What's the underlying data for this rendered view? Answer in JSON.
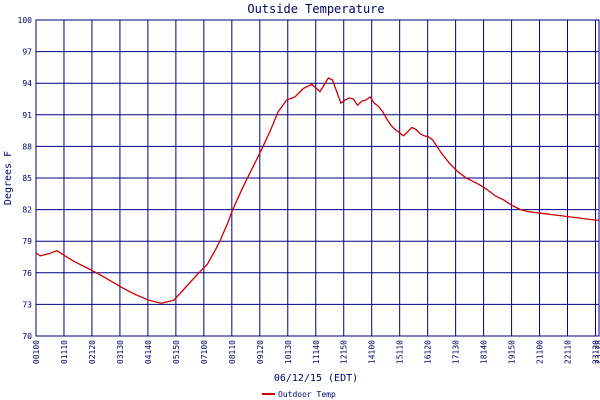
{
  "chart_data": {
    "type": "line",
    "title": "Outside Temperature",
    "ylabel": "Degrees F",
    "xlabel": "06/12/15 (EDT)",
    "ylim": [
      70,
      100
    ],
    "y_ticks": [
      "70",
      "73",
      "76",
      "79",
      "82",
      "85",
      "88",
      "91",
      "94",
      "97",
      "100"
    ],
    "x_ticks": [
      "00100",
      "01110",
      "02120",
      "03130",
      "04140",
      "05150",
      "07100",
      "08110",
      "09120",
      "10130",
      "11140",
      "12150",
      "14100",
      "15110",
      "16120",
      "17130",
      "18140",
      "19150",
      "21100",
      "22110",
      "23120",
      "23:28"
    ],
    "x_minutes_range": [
      60,
      1408
    ],
    "grid": true,
    "legend_position": "bottom",
    "colors": {
      "series": "#cc0000",
      "grid": "#000080",
      "text": "#000066",
      "background": "#ffffff"
    },
    "series": [
      {
        "name": "Outdoor Temp",
        "x": [
          60,
          70,
          90,
          110,
          130,
          150,
          180,
          210,
          240,
          270,
          300,
          330,
          360,
          390,
          420,
          450,
          470,
          490,
          500,
          510,
          520,
          530,
          540,
          560,
          580,
          600,
          620,
          640,
          660,
          680,
          700,
          720,
          740,
          760,
          770,
          780,
          790,
          800,
          810,
          820,
          830,
          840,
          850,
          860,
          870,
          880,
          890,
          900,
          910,
          920,
          930,
          940,
          950,
          960,
          970,
          980,
          990,
          1000,
          1010,
          1020,
          1030,
          1040,
          1050,
          1060,
          1070,
          1080,
          1090,
          1100,
          1120,
          1140,
          1160,
          1180,
          1200,
          1220,
          1240,
          1260,
          1280,
          1300,
          1320,
          1340,
          1360,
          1380,
          1400,
          1408
        ],
        "values": [
          77.9,
          77.6,
          77.8,
          78.1,
          77.6,
          77.1,
          76.5,
          75.9,
          75.2,
          74.5,
          73.9,
          73.4,
          73.1,
          73.4,
          74.7,
          76.0,
          76.8,
          78.2,
          79.0,
          79.9,
          80.8,
          81.9,
          82.8,
          84.5,
          86.1,
          87.7,
          89.4,
          91.3,
          92.4,
          92.7,
          93.5,
          93.9,
          93.2,
          94.5,
          94.3,
          93.2,
          92.1,
          92.4,
          92.6,
          92.5,
          91.9,
          92.3,
          92.4,
          92.7,
          92.1,
          91.8,
          91.3,
          90.6,
          90.0,
          89.6,
          89.3,
          89.0,
          89.4,
          89.8,
          89.6,
          89.2,
          89.0,
          88.9,
          88.6,
          88.0,
          87.4,
          86.9,
          86.4,
          86.0,
          85.6,
          85.3,
          85.0,
          84.8,
          84.4,
          83.9,
          83.3,
          82.9,
          82.4,
          82.0,
          81.8,
          81.7,
          81.6,
          81.5,
          81.4,
          81.3,
          81.2,
          81.1,
          81.0,
          81.0
        ]
      }
    ]
  }
}
